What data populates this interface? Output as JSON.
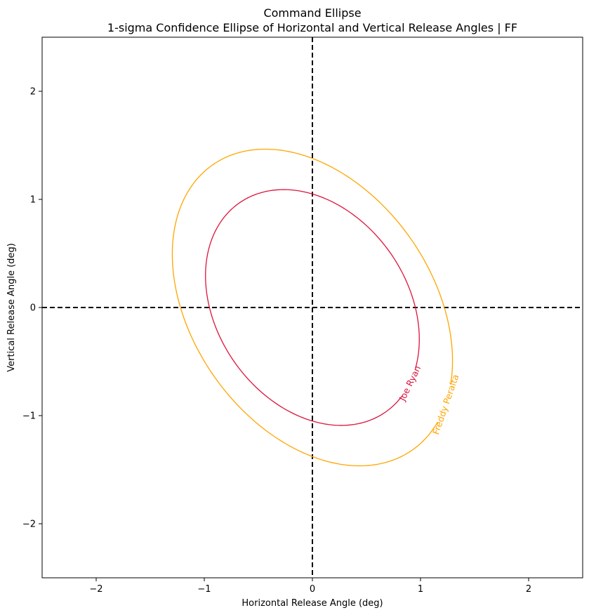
{
  "chart_data": {
    "type": "ellipse",
    "title": "Command Ellipse",
    "subtitle": "1-sigma Confidence Ellipse of Horizontal and Vertical Release Angles | FF",
    "xlabel": "Horizontal Release Angle (deg)",
    "ylabel": "Vertical Release Angle (deg)",
    "xlim": [
      -2.5,
      2.5
    ],
    "ylim": [
      -2.5,
      2.5
    ],
    "xticks": [
      -2,
      -1,
      0,
      1,
      2
    ],
    "yticks": [
      -2,
      -1,
      0,
      1,
      2
    ],
    "xtick_labels": [
      "−2",
      "−1",
      "0",
      "1",
      "2"
    ],
    "ytick_labels": [
      "−2",
      "−1",
      "0",
      "1",
      "2"
    ],
    "grid": false,
    "reference_lines": [
      {
        "orientation": "horizontal",
        "value": 0,
        "style": "dashed",
        "color": "#000000"
      },
      {
        "orientation": "vertical",
        "value": 0,
        "style": "dashed",
        "color": "#000000"
      }
    ],
    "series": [
      {
        "name": "Freddy Peralta",
        "color": "#FFA500",
        "center": [
          0,
          0
        ],
        "semi_major": 1.61,
        "semi_minor": 1.11,
        "angle_deg": 125,
        "label_angle_deg": -36
      },
      {
        "name": "Joe Ryan",
        "color": "#DC143C",
        "center": [
          0,
          0
        ],
        "semi_major": 1.18,
        "semi_minor": 0.88,
        "angle_deg": 125,
        "label_angle_deg": -38
      }
    ]
  }
}
